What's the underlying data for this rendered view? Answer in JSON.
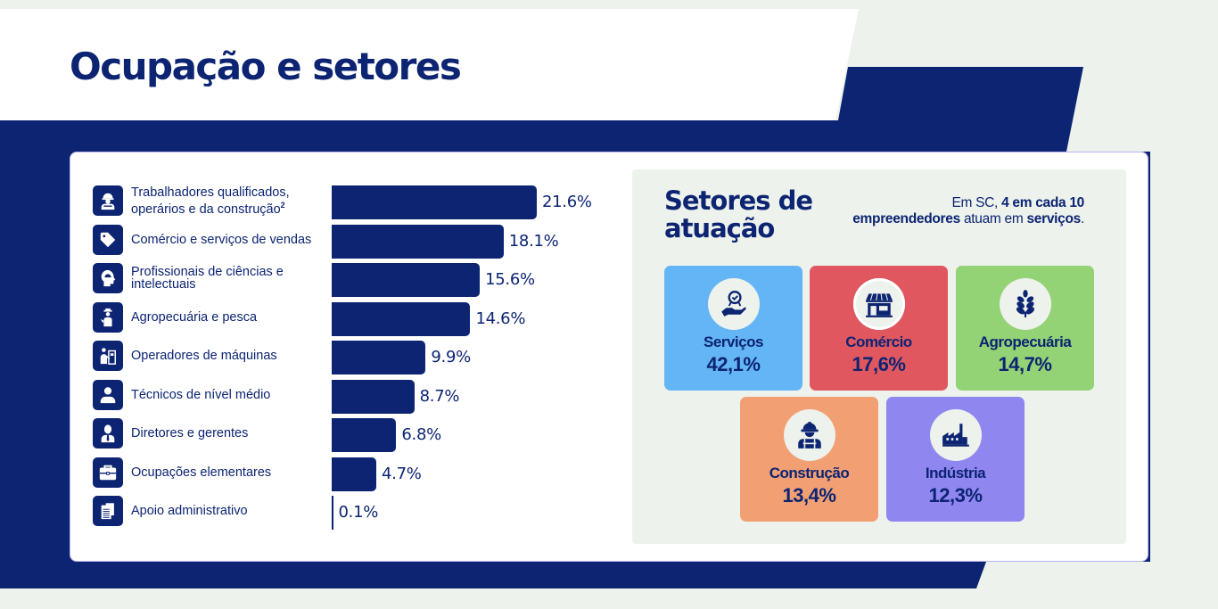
{
  "header": {
    "title": "Ocupação e setores"
  },
  "colors": {
    "navy": "#0c2472",
    "background": "#edf2ec",
    "card_border": "#b9b4f0",
    "servicos": "#64b5f6",
    "comercio": "#e05760",
    "agropecuaria": "#93d275",
    "construcao": "#f29f73",
    "industria": "#9086f0"
  },
  "chart_data": {
    "type": "bar",
    "orientation": "horizontal",
    "title": "",
    "xlabel": "",
    "ylabel": "",
    "unit": "%",
    "categories": [
      "Trabalhadores qualificados, operários e da construção",
      "Comércio e serviços de vendas",
      "Profissionais de ciências e intelectuais",
      "Agropecuária e pesca",
      "Operadores de máquinas",
      "Técnicos de nível médio",
      "Diretores e gerentes",
      "Ocupações elementares",
      "Apoio administrativo"
    ],
    "values": [
      21.6,
      18.1,
      15.6,
      14.6,
      9.9,
      8.7,
      6.8,
      4.7,
      0.1
    ],
    "value_labels": [
      "21.6%",
      "18.1%",
      "15.6%",
      "14.6%",
      "9.9%",
      "8.7%",
      "6.8%",
      "4.7%",
      "0.1%"
    ],
    "footnote_marker_first": "2",
    "icons": [
      "construction-worker-icon",
      "price-tag-icon",
      "head-mind-icon",
      "farmer-icon",
      "machine-operator-icon",
      "person-icon",
      "manager-icon",
      "toolbox-icon",
      "documents-icon"
    ],
    "grid": false,
    "legend": "none"
  },
  "sectors": {
    "title_line1": "Setores de",
    "title_line2": "atuação",
    "note": {
      "part1": "Em SC, ",
      "bold1": "4 em cada 10 empreendedores",
      "part2": " atuam em ",
      "bold2": "serviços",
      "part3": "."
    },
    "tiles": [
      {
        "name": "Serviços",
        "value": "42,1%",
        "icon": "service-award-hand-icon"
      },
      {
        "name": "Comércio",
        "value": "17,6%",
        "icon": "storefront-icon"
      },
      {
        "name": "Agropecuária",
        "value": "14,7%",
        "icon": "wheat-icon"
      },
      {
        "name": "Construção",
        "value": "13,4%",
        "icon": "construction-worker-icon"
      },
      {
        "name": "Indústria",
        "value": "12,3%",
        "icon": "factory-icon"
      }
    ]
  }
}
